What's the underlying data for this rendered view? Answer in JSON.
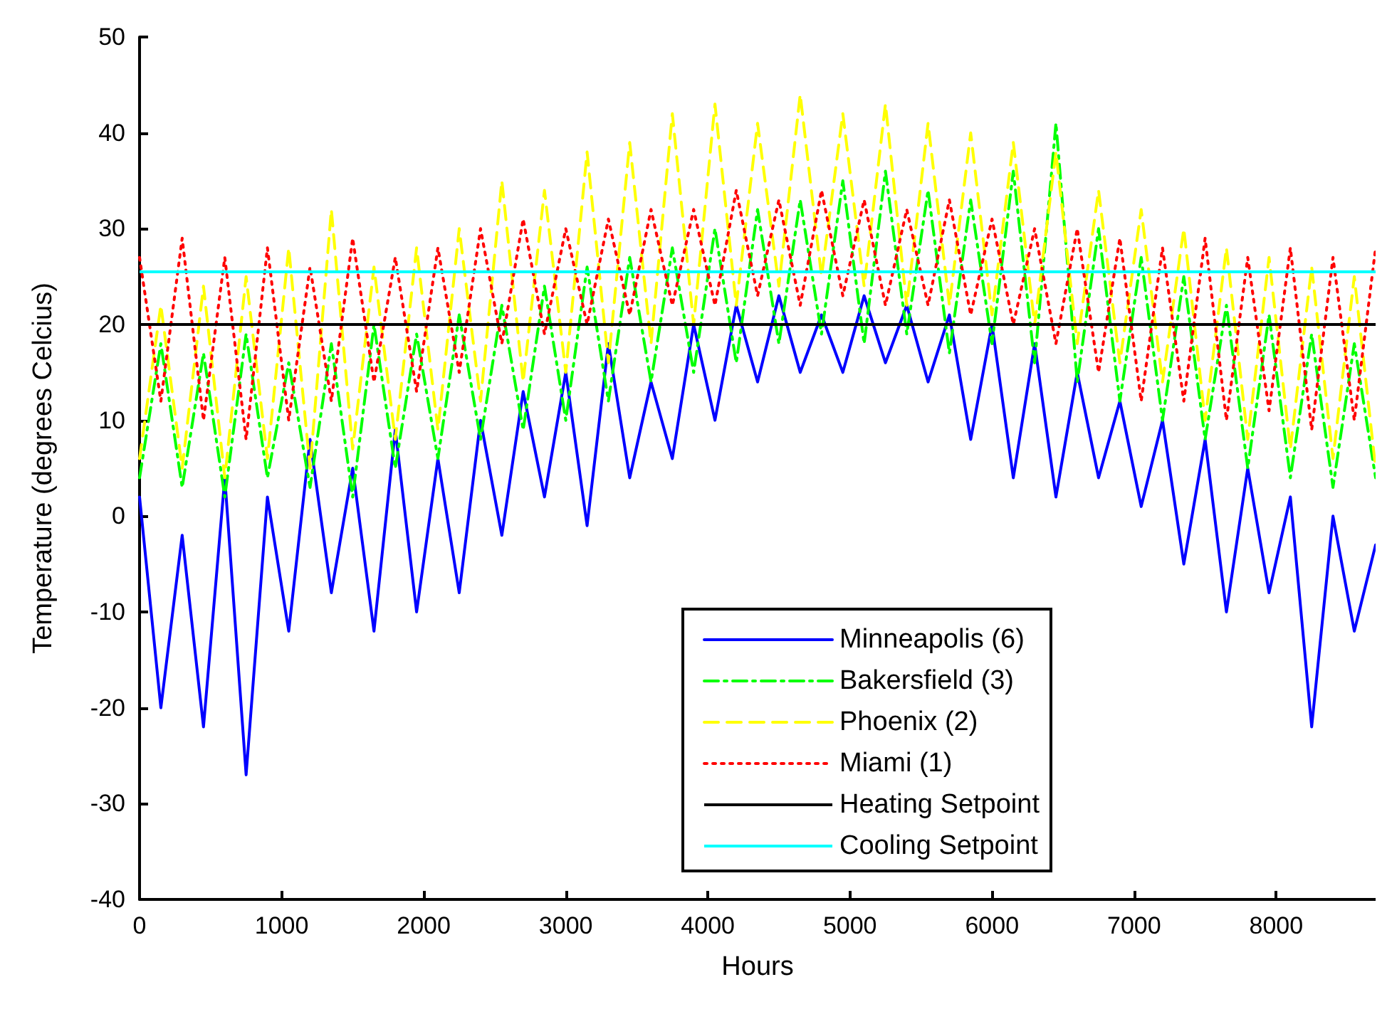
{
  "chart_data": {
    "type": "line",
    "xlabel": "Hours",
    "ylabel": "Temperature (degrees Celcius)",
    "x": [
      0,
      150,
      300,
      450,
      600,
      750,
      900,
      1050,
      1200,
      1350,
      1500,
      1650,
      1800,
      1950,
      2100,
      2250,
      2400,
      2550,
      2700,
      2850,
      3000,
      3150,
      3300,
      3450,
      3600,
      3750,
      3900,
      4050,
      4200,
      4350,
      4500,
      4650,
      4800,
      4950,
      5100,
      5250,
      5400,
      5550,
      5700,
      5850,
      6000,
      6150,
      6300,
      6450,
      6600,
      6750,
      6900,
      7050,
      7200,
      7350,
      7500,
      7650,
      7800,
      7950,
      8100,
      8250,
      8400,
      8550,
      8700
    ],
    "series": [
      {
        "name": "Minneapolis (6)",
        "color": "#0000ff",
        "line_style": "solid",
        "values": [
          2,
          -20,
          -2,
          -22,
          4,
          -27,
          2,
          -12,
          8,
          -8,
          5,
          -12,
          9,
          -10,
          6,
          -8,
          10,
          -2,
          13,
          2,
          15,
          -1,
          18,
          4,
          14,
          6,
          20,
          10,
          22,
          14,
          23,
          15,
          21,
          15,
          23,
          16,
          22,
          14,
          21,
          8,
          20,
          4,
          18,
          2,
          15,
          4,
          12,
          1,
          10,
          -5,
          8,
          -10,
          5,
          -8,
          2,
          -22,
          0,
          -12,
          -3
        ]
      },
      {
        "name": "Bakersfield (3)",
        "color": "#00ff00",
        "line_style": "dashdot",
        "values": [
          4,
          18,
          3,
          17,
          2,
          19,
          4,
          16,
          3,
          18,
          2,
          20,
          5,
          19,
          6,
          21,
          8,
          22,
          9,
          24,
          10,
          26,
          12,
          27,
          14,
          28,
          15,
          30,
          16,
          32,
          18,
          33,
          19,
          35,
          18,
          36,
          19,
          34,
          17,
          33,
          18,
          36,
          16,
          41,
          14,
          30,
          12,
          27,
          10,
          25,
          8,
          22,
          5,
          21,
          4,
          19,
          3,
          18,
          4
        ]
      },
      {
        "name": "Phoenix (2)",
        "color": "#ffff00",
        "line_style": "dashed",
        "values": [
          6,
          22,
          5,
          24,
          4,
          25,
          6,
          28,
          5,
          32,
          7,
          26,
          8,
          28,
          9,
          30,
          12,
          35,
          14,
          34,
          15,
          38,
          16,
          39,
          18,
          42,
          20,
          43,
          22,
          41,
          24,
          44,
          25,
          42,
          24,
          43,
          22,
          41,
          22,
          40,
          21,
          39,
          20,
          38,
          18,
          34,
          16,
          32,
          14,
          30,
          10,
          28,
          8,
          27,
          7,
          26,
          6,
          25,
          5
        ]
      },
      {
        "name": "Miami (1)",
        "color": "#ff0000",
        "line_style": "dotted",
        "values": [
          27,
          12,
          29,
          10,
          27,
          8,
          28,
          10,
          26,
          12,
          29,
          14,
          27,
          13,
          28,
          15,
          30,
          18,
          31,
          19,
          30,
          20,
          31,
          21,
          32,
          22,
          32,
          22,
          34,
          23,
          33,
          22,
          34,
          23,
          33,
          22,
          32,
          22,
          33,
          21,
          31,
          20,
          30,
          18,
          30,
          15,
          29,
          12,
          28,
          12,
          29,
          10,
          27,
          11,
          28,
          9,
          27,
          10,
          28
        ]
      }
    ],
    "ref_lines": [
      {
        "axis": "y",
        "value": 20,
        "label": "Heating Setpoint",
        "color": "#000000",
        "line_style": "solid"
      },
      {
        "axis": "y",
        "value": 25.5,
        "label": "Cooling Setpoint",
        "color": "#00ffff",
        "line_style": "solid"
      }
    ],
    "xlim": [
      0,
      8700
    ],
    "xticks": [
      0,
      1000,
      2000,
      3000,
      4000,
      5000,
      6000,
      7000,
      8000
    ],
    "ylim": [
      -40,
      50
    ],
    "yticks": [
      -40,
      -30,
      -20,
      -10,
      0,
      10,
      20,
      30,
      40,
      50
    ],
    "grid": false,
    "legend": "bottom right",
    "marker": "none"
  }
}
